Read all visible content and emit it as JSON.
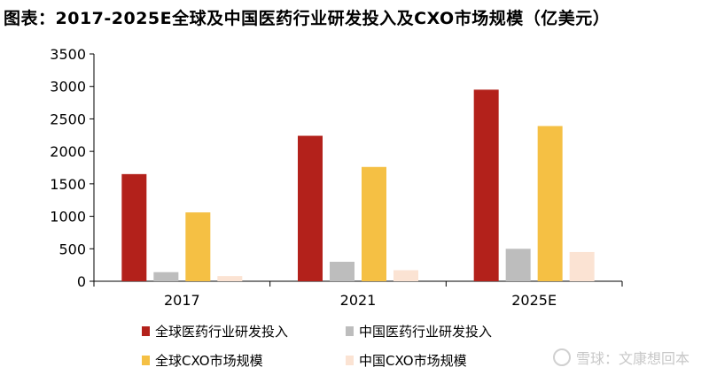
{
  "chart_data": {
    "type": "bar",
    "title": "图表：2017-2025E全球及中国医药行业研发投入及CXO市场规模（亿美元）",
    "categories": [
      "2017",
      "2021",
      "2025E"
    ],
    "series": [
      {
        "name": "全球医药行业研发投入",
        "color": "#b3211b",
        "values": [
          1650,
          2240,
          2950
        ]
      },
      {
        "name": "中国医药行业研发投入",
        "color": "#bdbdbd",
        "values": [
          140,
          300,
          500
        ]
      },
      {
        "name": "全球CXO市场规模",
        "color": "#f5c044",
        "values": [
          1060,
          1760,
          2390
        ]
      },
      {
        "name": "中国CXO市场规模",
        "color": "#fbe3d3",
        "values": [
          80,
          170,
          450
        ]
      }
    ],
    "ylim": [
      0,
      3500
    ],
    "yticks": [
      "0",
      "500",
      "1000",
      "1500",
      "2000",
      "2500",
      "3000",
      "3500"
    ],
    "xlabel": "",
    "ylabel": "",
    "grid": false,
    "legend_position": "bottom"
  },
  "watermark": {
    "text": "雪球：文康想回本"
  }
}
